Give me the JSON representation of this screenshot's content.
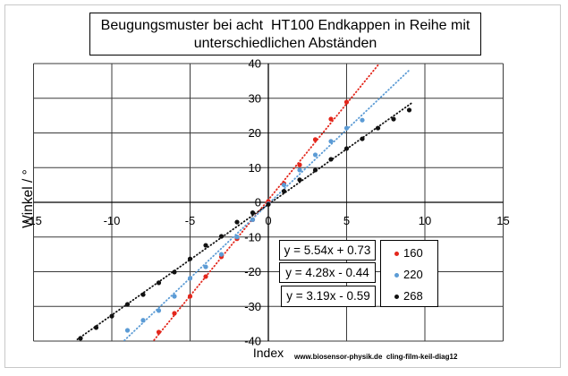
{
  "chart_data": {
    "type": "scatter",
    "title": "Beugungsmuster bei acht  HT100 Endkappen in Reihe mit\nunterschiedlichen Abständen",
    "xlabel": "Index",
    "ylabel": "Winkel / °",
    "xlim": [
      -15,
      15
    ],
    "ylim": [
      -40,
      40
    ],
    "x_major_unit": 5,
    "y_major_unit": 10,
    "x_tick_labels": [
      "-15",
      "-10",
      "-5",
      "0",
      "5",
      "10",
      "15"
    ],
    "y_tick_labels": [
      "-40",
      "-30",
      "-20",
      "-10",
      "0",
      "10",
      "20",
      "30",
      "40"
    ],
    "grid": true,
    "legend": {
      "position": "lower-right"
    },
    "series": [
      {
        "name": "160",
        "color": "#e3261b",
        "x": [
          -7,
          -6,
          -5,
          -4,
          -3,
          -2,
          -1,
          0,
          1,
          2,
          3,
          4,
          5
        ],
        "y": [
          -37.4,
          -32.0,
          -27.1,
          -21.4,
          -15.7,
          -10.5,
          -5.0,
          0.3,
          5.4,
          10.8,
          18.1,
          24.0,
          28.9
        ],
        "trendline": {
          "slope": 5.54,
          "intercept": 0.73,
          "equation": "y = 5.54x + 0.73",
          "x_range": [
            -7.3,
            7.1
          ]
        }
      },
      {
        "name": "220",
        "color": "#5b9bd5",
        "x": [
          -9,
          -8,
          -7,
          -6,
          -5,
          -4,
          -3,
          -2,
          -1,
          0,
          1,
          2,
          3,
          4,
          5,
          6
        ],
        "y": [
          -36.9,
          -34.0,
          -31.2,
          -27.1,
          -21.9,
          -18.6,
          -15.0,
          -10.0,
          -5.0,
          -0.4,
          5.0,
          9.3,
          13.7,
          17.6,
          21.4,
          23.7
        ],
        "trendline": {
          "slope": 4.28,
          "intercept": -0.44,
          "equation": "y = 4.28x - 0.44",
          "x_range": [
            -9.2,
            9.0
          ]
        }
      },
      {
        "name": "268",
        "color": "#111111",
        "x": [
          -12,
          -11,
          -10,
          -9,
          -8,
          -7,
          -6,
          -5,
          -4,
          -3,
          -2,
          -1,
          0,
          1,
          2,
          3,
          4,
          5,
          6,
          7,
          8,
          9
        ],
        "y": [
          -39.2,
          -36.1,
          -32.8,
          -29.4,
          -26.6,
          -23.2,
          -20.1,
          -16.3,
          -12.4,
          -9.8,
          -5.7,
          -3.0,
          -0.6,
          3.2,
          6.5,
          9.3,
          12.4,
          15.5,
          18.3,
          21.4,
          24.0,
          26.6
        ],
        "trendline": {
          "slope": 3.19,
          "intercept": -0.59,
          "equation": "y = 3.19x - 0.59",
          "x_range": [
            -12.2,
            9.2
          ]
        }
      }
    ]
  },
  "footer": {
    "watermark": "www.biosensor-physik.de  cling-film-keil-diag12"
  }
}
